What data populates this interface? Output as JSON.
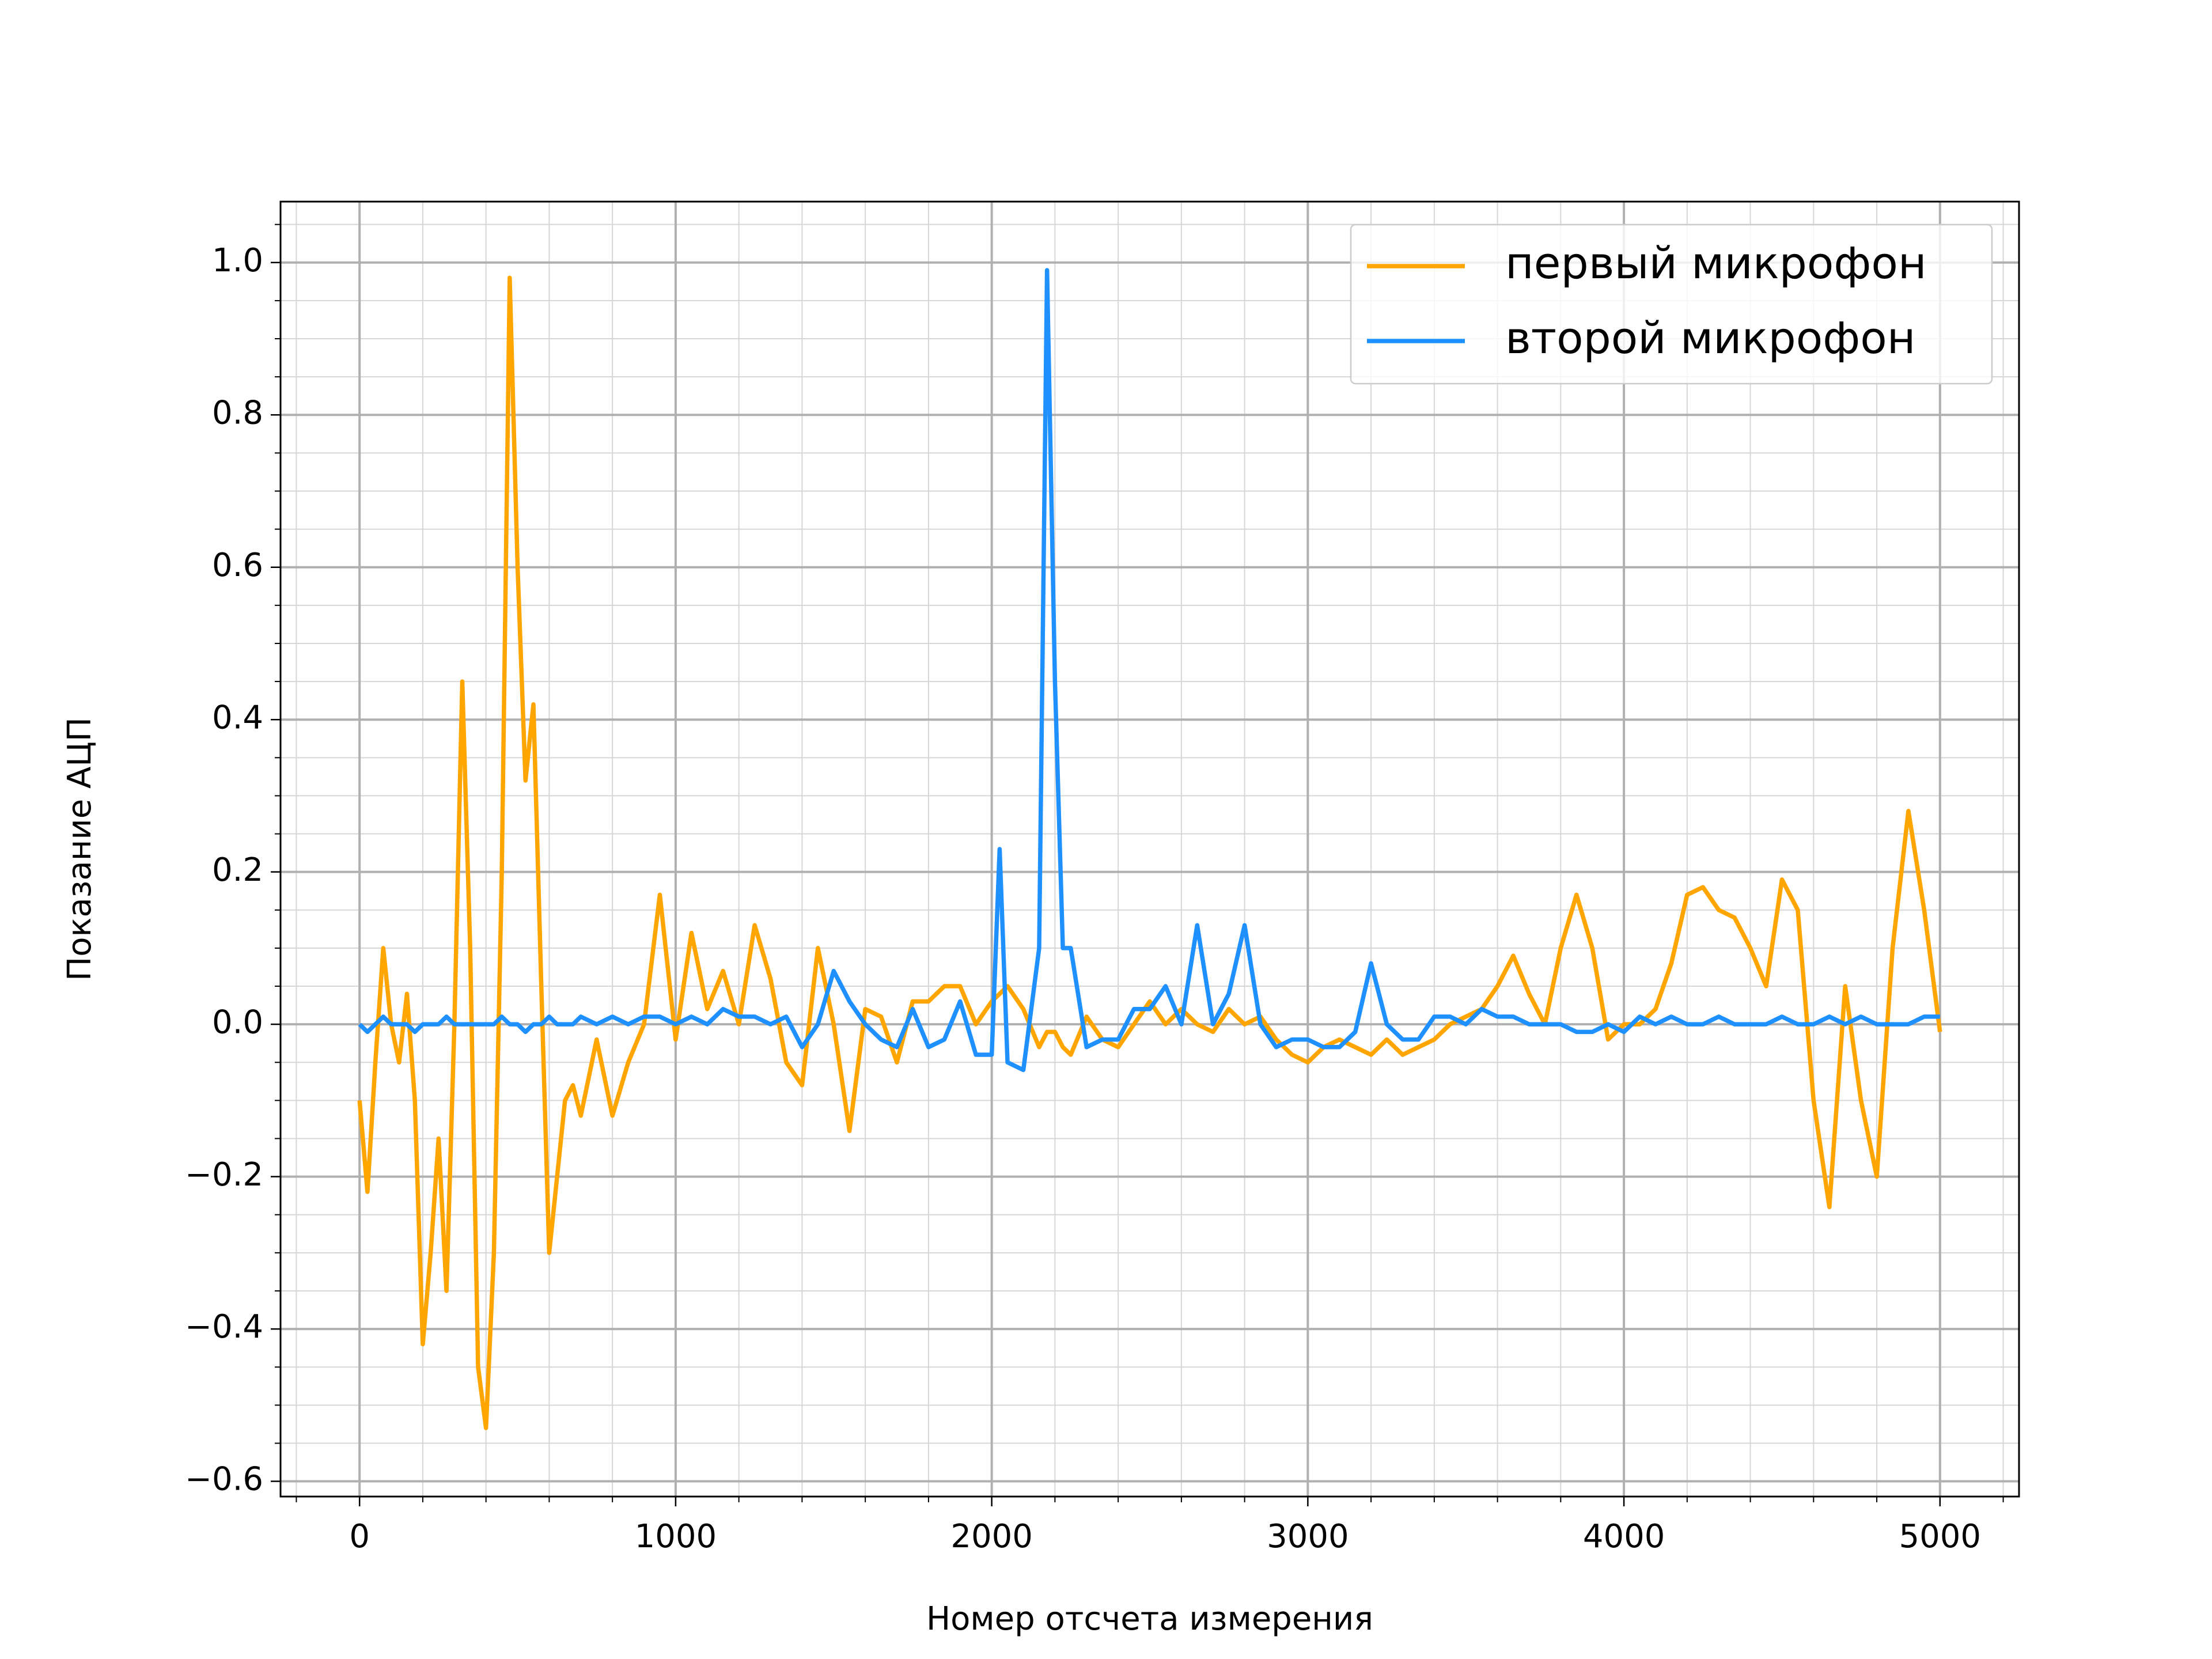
{
  "chart_data": {
    "type": "line",
    "xlabel": "Номер отсчета измерения",
    "ylabel": "Показание АЦП",
    "x": [
      0,
      25,
      50,
      75,
      100,
      125,
      150,
      175,
      200,
      225,
      250,
      275,
      300,
      325,
      350,
      375,
      400,
      425,
      450,
      475,
      500,
      525,
      550,
      575,
      600,
      625,
      650,
      675,
      700,
      750,
      800,
      850,
      900,
      950,
      1000,
      1050,
      1100,
      1150,
      1200,
      1250,
      1300,
      1350,
      1400,
      1450,
      1500,
      1550,
      1600,
      1650,
      1700,
      1750,
      1800,
      1850,
      1900,
      1950,
      2000,
      2025,
      2050,
      2100,
      2150,
      2175,
      2200,
      2225,
      2250,
      2300,
      2350,
      2400,
      2450,
      2500,
      2550,
      2600,
      2650,
      2700,
      2750,
      2800,
      2850,
      2900,
      2950,
      3000,
      3050,
      3100,
      3150,
      3200,
      3250,
      3300,
      3350,
      3400,
      3450,
      3500,
      3550,
      3600,
      3650,
      3700,
      3750,
      3800,
      3850,
      3900,
      3950,
      4000,
      4050,
      4100,
      4150,
      4200,
      4250,
      4300,
      4350,
      4400,
      4450,
      4500,
      4550,
      4600,
      4650,
      4700,
      4750,
      4800,
      4850,
      4900,
      4950,
      5000
    ],
    "series": [
      {
        "name": "первый микрофон",
        "color": "#ffa500",
        "values": [
          -0.1,
          -0.22,
          -0.05,
          0.1,
          0.0,
          -0.05,
          0.04,
          -0.1,
          -0.42,
          -0.3,
          -0.15,
          -0.35,
          0.0,
          0.45,
          0.1,
          -0.45,
          -0.53,
          -0.3,
          0.2,
          0.98,
          0.6,
          0.32,
          0.42,
          0.05,
          -0.3,
          -0.2,
          -0.1,
          -0.08,
          -0.12,
          -0.02,
          -0.12,
          -0.05,
          0.0,
          0.17,
          -0.02,
          0.12,
          0.02,
          0.07,
          0.0,
          0.13,
          0.06,
          -0.05,
          -0.08,
          0.1,
          0.0,
          -0.14,
          0.02,
          0.01,
          -0.05,
          0.03,
          0.03,
          0.05,
          0.05,
          0.0,
          0.03,
          0.04,
          0.05,
          0.02,
          -0.03,
          -0.01,
          -0.01,
          -0.03,
          -0.04,
          0.01,
          -0.02,
          -0.03,
          0.0,
          0.03,
          0.0,
          0.02,
          0.0,
          -0.01,
          0.02,
          0.0,
          0.01,
          -0.02,
          -0.04,
          -0.05,
          -0.03,
          -0.02,
          -0.03,
          -0.04,
          -0.02,
          -0.04,
          -0.03,
          -0.02,
          0.0,
          0.01,
          0.02,
          0.05,
          0.09,
          0.04,
          0.0,
          0.1,
          0.17,
          0.1,
          -0.02,
          0.0,
          0.0,
          0.02,
          0.08,
          0.17,
          0.18,
          0.15,
          0.14,
          0.1,
          0.05,
          0.19,
          0.15,
          -0.1,
          -0.24,
          0.05,
          -0.1,
          -0.2,
          0.1,
          0.28,
          0.15,
          -0.01
        ]
      },
      {
        "name": "второй микрофон",
        "color": "#1e90ff",
        "values": [
          0.0,
          -0.01,
          0.0,
          0.01,
          0.0,
          0.0,
          0.0,
          -0.01,
          0.0,
          0.0,
          0.0,
          0.01,
          0.0,
          0.0,
          0.0,
          0.0,
          0.0,
          0.0,
          0.01,
          0.0,
          0.0,
          -0.01,
          0.0,
          0.0,
          0.01,
          0.0,
          0.0,
          0.0,
          0.01,
          0.0,
          0.01,
          0.0,
          0.01,
          0.01,
          0.0,
          0.01,
          0.0,
          0.02,
          0.01,
          0.01,
          0.0,
          0.01,
          -0.03,
          0.0,
          0.07,
          0.03,
          0.0,
          -0.02,
          -0.03,
          0.02,
          -0.03,
          -0.02,
          0.03,
          -0.04,
          -0.04,
          0.23,
          -0.05,
          -0.06,
          0.1,
          0.99,
          0.45,
          0.1,
          0.1,
          -0.03,
          -0.02,
          -0.02,
          0.02,
          0.02,
          0.05,
          0.0,
          0.13,
          0.0,
          0.04,
          0.13,
          0.0,
          -0.03,
          -0.02,
          -0.02,
          -0.03,
          -0.03,
          -0.01,
          0.08,
          0.0,
          -0.02,
          -0.02,
          0.01,
          0.01,
          0.0,
          0.02,
          0.01,
          0.01,
          0.0,
          0.0,
          0.0,
          -0.01,
          -0.01,
          0.0,
          -0.01,
          0.01,
          0.0,
          0.01,
          0.0,
          0.0,
          0.01,
          0.0,
          0.0,
          0.0,
          0.01,
          0.0,
          0.0,
          0.01,
          0.0,
          0.01,
          0.0,
          0.0,
          0.0,
          0.01,
          0.01
        ]
      }
    ],
    "xlim": [
      -250,
      5250
    ],
    "ylim": [
      -0.62,
      1.08
    ],
    "xticks": [
      0,
      1000,
      2000,
      3000,
      4000,
      5000
    ],
    "yticks": [
      {
        "value": -0.6,
        "label": "−0.6"
      },
      {
        "value": -0.4,
        "label": "−0.4"
      },
      {
        "value": -0.2,
        "label": "−0.2"
      },
      {
        "value": 0.0,
        "label": "0.0"
      },
      {
        "value": 0.2,
        "label": "0.2"
      },
      {
        "value": 0.4,
        "label": "0.4"
      },
      {
        "value": 0.6,
        "label": "0.6"
      },
      {
        "value": 0.8,
        "label": "0.8"
      },
      {
        "value": 1.0,
        "label": "1.0"
      }
    ],
    "grid": true,
    "minor_grid": true,
    "legend": "upper right"
  }
}
